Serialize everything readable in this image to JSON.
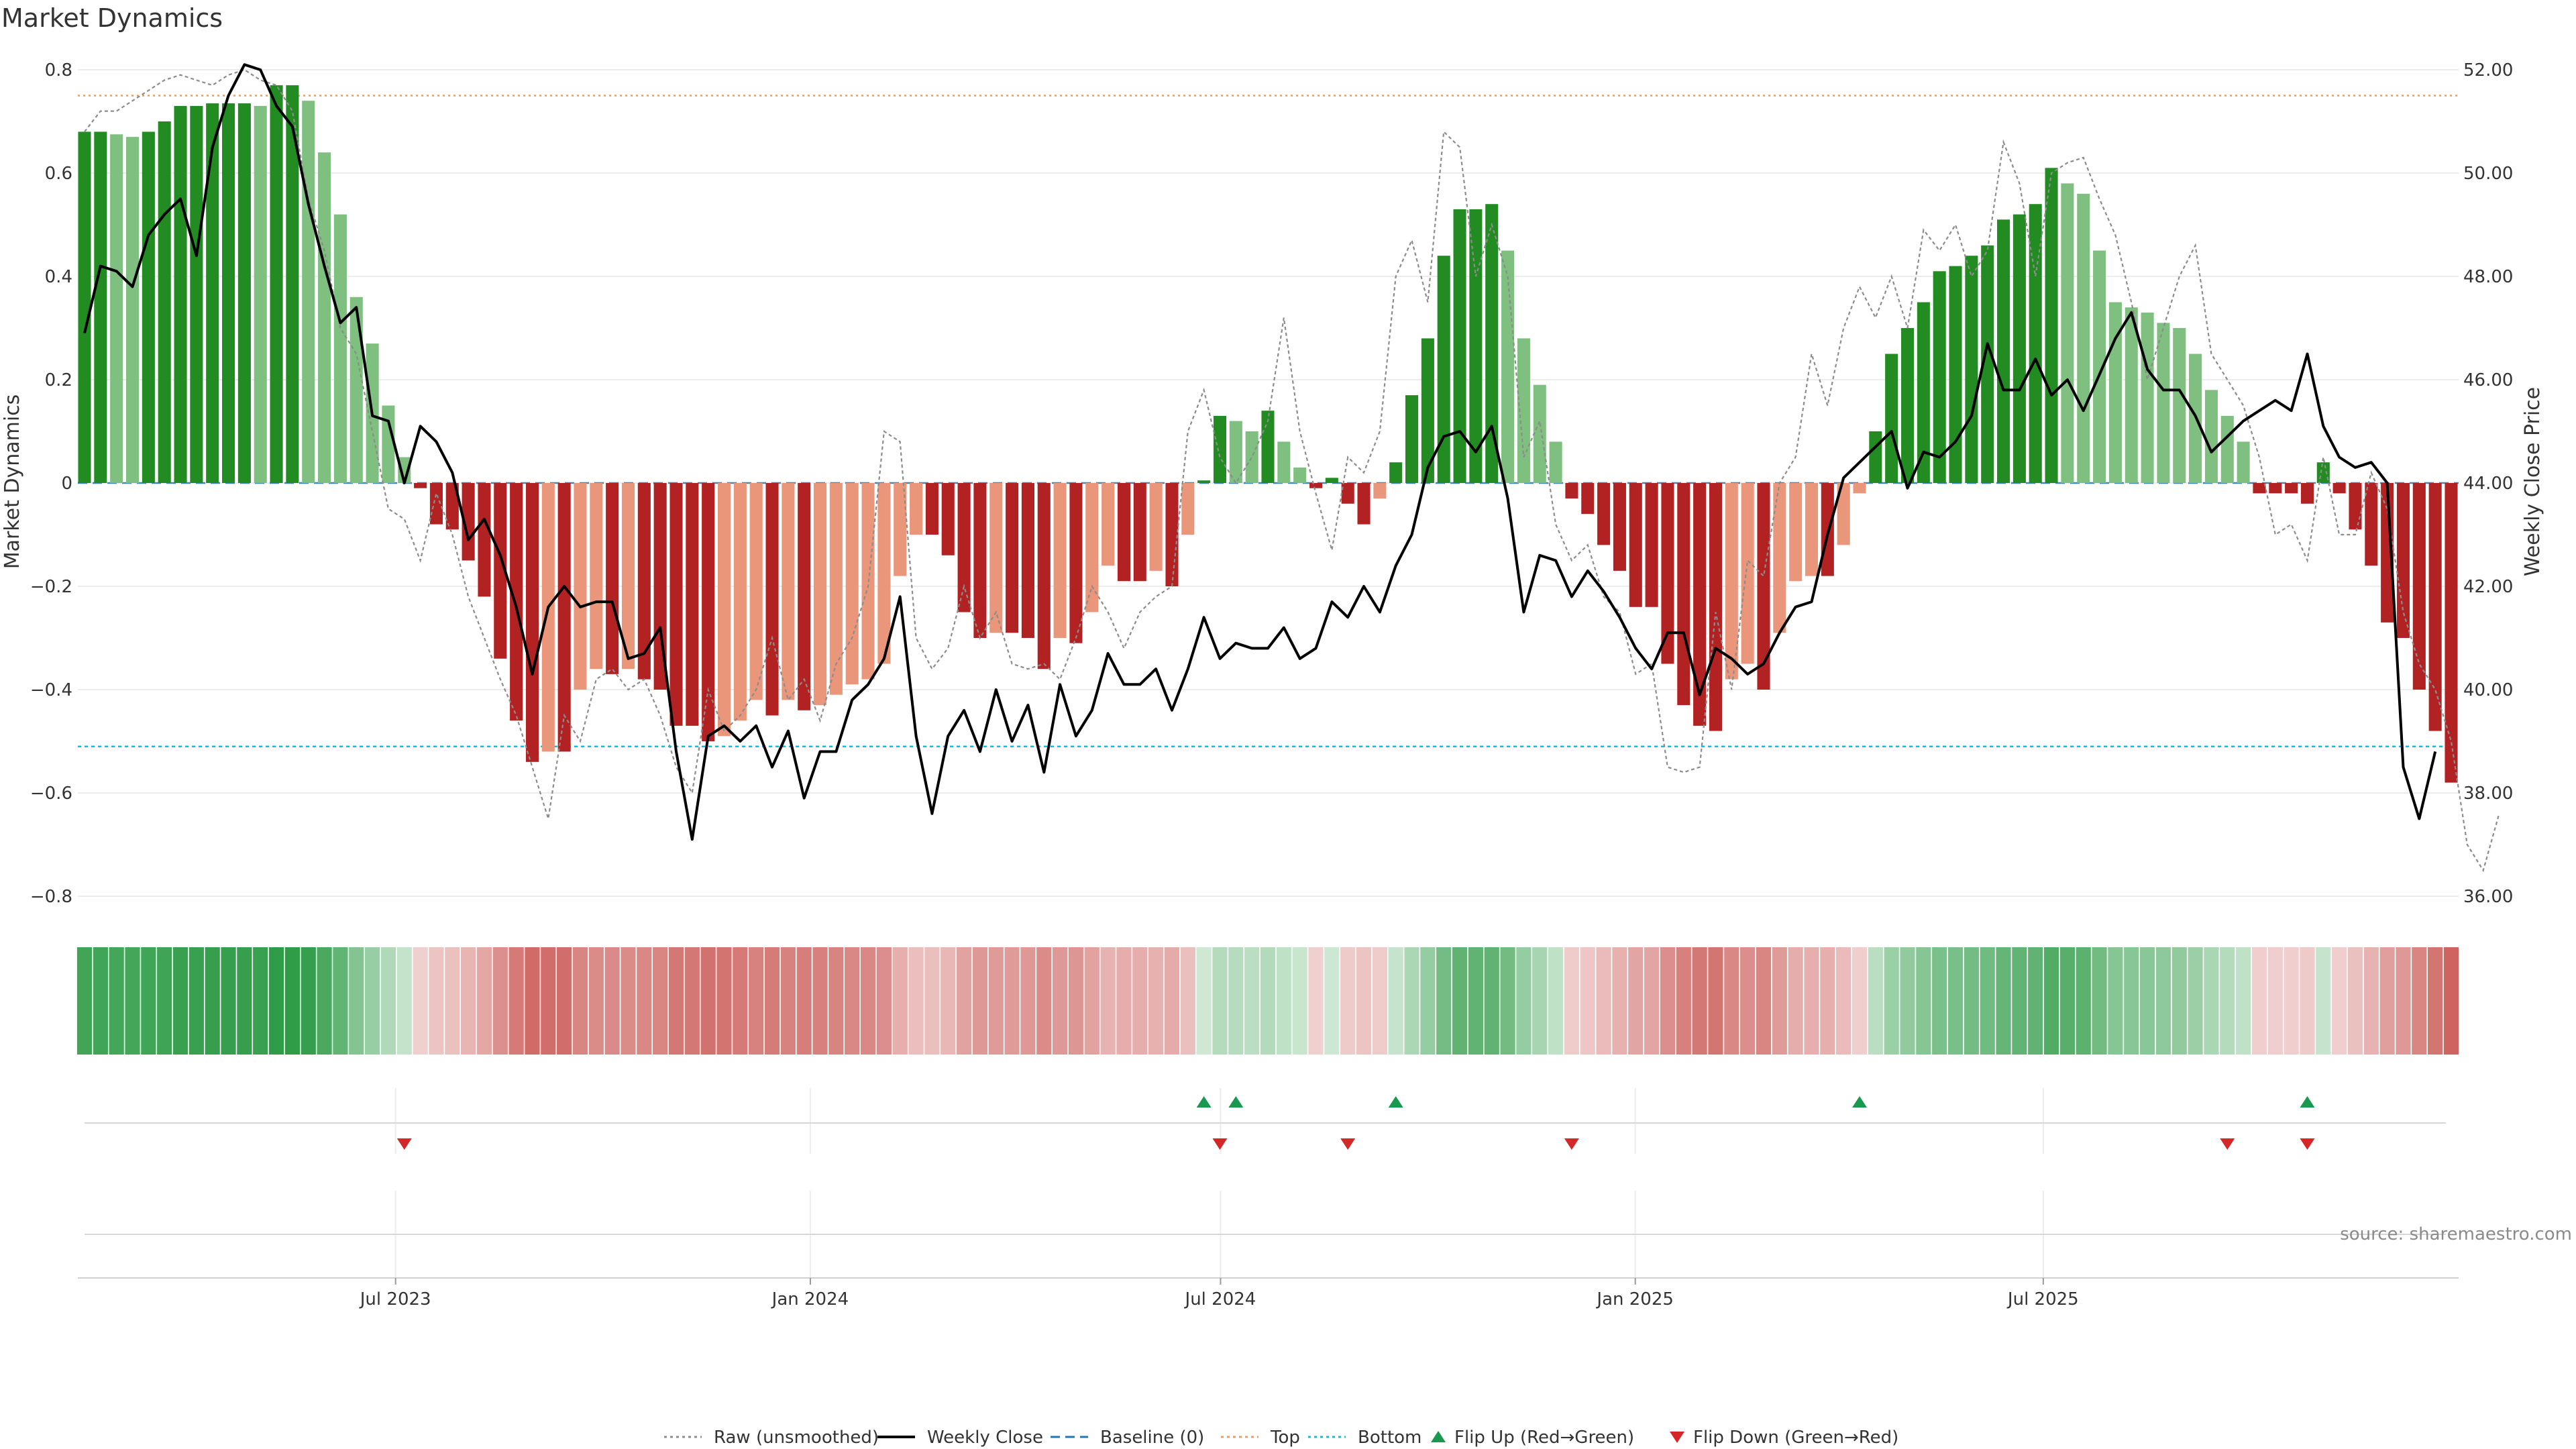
{
  "chart_data": {
    "type": "bar",
    "title": "Market Dynamics",
    "ylabel_left": "Market Dynamics",
    "ylabel_right": "Weekly Close Price",
    "source": "source: sharemaestro.com",
    "left_ylim": [
      -0.8,
      0.8
    ],
    "left_ticks": [
      0.8,
      0.6,
      0.4,
      0.2,
      0,
      -0.2,
      -0.4,
      -0.6,
      -0.8
    ],
    "left_tick_labels": [
      "0.8",
      "0.6",
      "0.4",
      "0.2",
      "0",
      "−0.2",
      "−0.4",
      "−0.6",
      "−0.8"
    ],
    "right_ylim": [
      36.0,
      52.0
    ],
    "right_ticks": [
      52,
      50,
      48,
      46,
      44,
      42,
      40,
      38,
      36
    ],
    "right_tick_labels": [
      "52.00",
      "50.00",
      "48.00",
      "46.00",
      "44.00",
      "42.00",
      "40.00",
      "38.00",
      "36.00"
    ],
    "x_date_range": [
      "2023-02-13",
      "2025-12-29"
    ],
    "x_ticks": [
      "2023-07-01",
      "2024-01-01",
      "2024-07-01",
      "2025-01-01",
      "2025-07-01"
    ],
    "x_tick_labels": [
      "Jul 2023",
      "Jan 2024",
      "Jul 2024",
      "Jan 2025",
      "Jul 2025"
    ],
    "top_level": 0.75,
    "bottom_level": -0.51,
    "baseline": 0,
    "grid": true,
    "legend_position": "bottom-center",
    "legend": [
      {
        "label": "Raw (unsmoothed)",
        "kind": "dotted-line",
        "color": "#8c8c8c"
      },
      {
        "label": "Weekly Close",
        "kind": "line",
        "color": "#000000"
      },
      {
        "label": "Baseline (0)",
        "kind": "dashed-line",
        "color": "#1f77b4"
      },
      {
        "label": "Top",
        "kind": "dotted-line",
        "color": "#e3a368"
      },
      {
        "label": "Bottom",
        "kind": "dotted-line",
        "color": "#17becf"
      },
      {
        "label": "Flip Up (Red→Green)",
        "kind": "triangle-up",
        "color": "#1a9850"
      },
      {
        "label": "Flip Down (Green→Red)",
        "kind": "triangle-down",
        "color": "#d62728"
      }
    ],
    "colors": {
      "green_strong": "#228B22",
      "green_light": "#7fbf7f",
      "red_strong": "#b22222",
      "red_light": "#e9967a",
      "price": "#000000",
      "raw": "#8c8c8c",
      "flip_up": "#1a9850",
      "flip_down": "#d62728"
    },
    "series": [
      {
        "name": "Market Dynamics",
        "values": [
          0.68,
          0.68,
          0.675,
          0.67,
          0.68,
          0.7,
          0.73,
          0.73,
          0.735,
          0.735,
          0.735,
          0.73,
          0.77,
          0.77,
          0.74,
          0.64,
          0.52,
          0.36,
          0.27,
          0.15,
          0.05,
          -0.01,
          -0.08,
          -0.09,
          -0.15,
          -0.22,
          -0.34,
          -0.46,
          -0.54,
          -0.52,
          -0.52,
          -0.4,
          -0.36,
          -0.37,
          -0.36,
          -0.38,
          -0.4,
          -0.47,
          -0.47,
          -0.5,
          -0.49,
          -0.46,
          -0.42,
          -0.45,
          -0.42,
          -0.44,
          -0.43,
          -0.41,
          -0.39,
          -0.38,
          -0.35,
          -0.18,
          -0.1,
          -0.1,
          -0.14,
          -0.25,
          -0.3,
          -0.29,
          -0.29,
          -0.3,
          -0.36,
          -0.3,
          -0.31,
          -0.25,
          -0.16,
          -0.19,
          -0.19,
          -0.17,
          -0.2,
          -0.1,
          0.005,
          0.13,
          0.12,
          0.1,
          0.14,
          0.08,
          0.03,
          -0.01,
          0.01,
          -0.04,
          -0.08,
          -0.03,
          0.04,
          0.17,
          0.28,
          0.44,
          0.53,
          0.53,
          0.54,
          0.45,
          0.28,
          0.19,
          0.08,
          -0.03,
          -0.06,
          -0.12,
          -0.17,
          -0.24,
          -0.24,
          -0.35,
          -0.43,
          -0.47,
          -0.48,
          -0.38,
          -0.35,
          -0.4,
          -0.29,
          -0.19,
          -0.18,
          -0.18,
          -0.12,
          -0.02,
          0.1,
          0.25,
          0.3,
          0.35,
          0.41,
          0.42,
          0.44,
          0.46,
          0.51,
          0.52,
          0.54,
          0.61,
          0.58,
          0.56,
          0.45,
          0.35,
          0.34,
          0.33,
          0.31,
          0.3,
          0.25,
          0.18,
          0.13,
          0.08,
          -0.02,
          -0.02,
          -0.02,
          -0.04,
          0.04,
          -0.02,
          -0.09,
          -0.16,
          -0.27,
          -0.3,
          -0.4,
          -0.48,
          -0.58
        ]
      },
      {
        "name": "Weekly Close",
        "values": [
          46.9,
          48.2,
          48.1,
          47.8,
          48.8,
          49.2,
          49.5,
          48.4,
          50.5,
          51.5,
          52.1,
          52.0,
          51.3,
          50.9,
          49.4,
          48.2,
          47.1,
          47.4,
          45.3,
          45.2,
          44.0,
          45.1,
          44.8,
          44.2,
          42.9,
          43.3,
          42.6,
          41.6,
          40.3,
          41.6,
          42.0,
          41.6,
          41.7,
          41.7,
          40.6,
          40.7,
          41.2,
          38.8,
          37.1,
          39.1,
          39.3,
          39.0,
          39.3,
          38.5,
          39.2,
          37.9,
          38.8,
          38.8,
          39.8,
          40.1,
          40.6,
          41.8,
          39.1,
          37.6,
          39.1,
          39.6,
          38.8,
          40.0,
          39.0,
          39.7,
          38.4,
          40.1,
          39.1,
          39.6,
          40.7,
          40.1,
          40.1,
          40.4,
          39.6,
          40.4,
          41.4,
          40.6,
          40.9,
          40.8,
          40.8,
          41.2,
          40.6,
          40.8,
          41.7,
          41.4,
          42.0,
          41.5,
          42.4,
          43.0,
          44.3,
          44.9,
          45.0,
          44.6,
          45.1,
          43.7,
          41.5,
          42.6,
          42.5,
          41.8,
          42.3,
          41.9,
          41.4,
          40.8,
          40.4,
          41.1,
          41.1,
          39.9,
          40.8,
          40.6,
          40.3,
          40.5,
          41.1,
          41.6,
          41.7,
          43.0,
          44.1,
          44.4,
          44.7,
          45.0,
          43.9,
          44.6,
          44.5,
          44.8,
          45.3,
          46.7,
          45.8,
          45.8,
          46.4,
          45.7,
          46.0,
          45.4,
          46.1,
          46.8,
          47.3,
          46.2,
          45.8,
          45.8,
          45.3,
          44.6,
          44.9,
          45.2,
          45.4,
          45.6,
          45.4,
          46.5,
          45.1,
          44.5,
          44.3,
          44.4,
          44.0,
          38.5,
          37.5,
          38.8
        ]
      },
      {
        "name": "Raw (unsmoothed)",
        "values": [
          0.68,
          0.72,
          0.72,
          0.74,
          0.76,
          0.78,
          0.79,
          0.78,
          0.77,
          0.79,
          0.8,
          0.78,
          0.77,
          0.72,
          0.55,
          0.45,
          0.3,
          0.25,
          0.1,
          -0.05,
          -0.07,
          -0.15,
          -0.02,
          -0.1,
          -0.22,
          -0.3,
          -0.38,
          -0.45,
          -0.55,
          -0.65,
          -0.45,
          -0.5,
          -0.38,
          -0.36,
          -0.4,
          -0.38,
          -0.45,
          -0.55,
          -0.6,
          -0.4,
          -0.48,
          -0.45,
          -0.4,
          -0.3,
          -0.42,
          -0.38,
          -0.46,
          -0.35,
          -0.3,
          -0.2,
          0.1,
          0.08,
          -0.3,
          -0.36,
          -0.32,
          -0.2,
          -0.3,
          -0.25,
          -0.35,
          -0.36,
          -0.35,
          -0.38,
          -0.3,
          -0.2,
          -0.25,
          -0.32,
          -0.25,
          -0.22,
          -0.2,
          0.1,
          0.18,
          0.05,
          0.0,
          0.05,
          0.12,
          0.32,
          0.1,
          -0.02,
          -0.13,
          0.05,
          0.02,
          0.1,
          0.4,
          0.47,
          0.35,
          0.68,
          0.65,
          0.4,
          0.5,
          0.4,
          0.05,
          0.12,
          -0.08,
          -0.15,
          -0.12,
          -0.22,
          -0.25,
          -0.37,
          -0.35,
          -0.55,
          -0.56,
          -0.55,
          -0.25,
          -0.4,
          -0.15,
          -0.18,
          0.0,
          0.05,
          0.25,
          0.15,
          0.3,
          0.38,
          0.32,
          0.4,
          0.3,
          0.49,
          0.45,
          0.5,
          0.4,
          0.45,
          0.66,
          0.58,
          0.4,
          0.6,
          0.62,
          0.63,
          0.55,
          0.48,
          0.35,
          0.2,
          0.3,
          0.4,
          0.46,
          0.25,
          0.2,
          0.15,
          0.05,
          -0.1,
          -0.08,
          -0.15,
          0.05,
          -0.1,
          -0.1,
          0.02,
          -0.05,
          -0.25,
          -0.35,
          -0.4,
          -0.5,
          -0.7,
          -0.75,
          -0.64
        ]
      }
    ],
    "weekly_state_strip": [
      0.68,
      0.68,
      0.675,
      0.67,
      0.68,
      0.7,
      0.73,
      0.73,
      0.735,
      0.735,
      0.735,
      0.73,
      0.77,
      0.77,
      0.74,
      0.64,
      0.52,
      0.36,
      0.27,
      0.15,
      0.05,
      -0.01,
      -0.08,
      -0.09,
      -0.15,
      -0.22,
      -0.34,
      -0.46,
      -0.54,
      -0.52,
      -0.52,
      -0.4,
      -0.36,
      -0.37,
      -0.36,
      -0.38,
      -0.4,
      -0.47,
      -0.47,
      -0.5,
      -0.49,
      -0.46,
      -0.42,
      -0.45,
      -0.42,
      -0.44,
      -0.43,
      -0.41,
      -0.39,
      -0.38,
      -0.35,
      -0.18,
      -0.1,
      -0.1,
      -0.14,
      -0.25,
      -0.3,
      -0.29,
      -0.29,
      -0.3,
      -0.36,
      -0.3,
      -0.31,
      -0.25,
      -0.16,
      -0.19,
      -0.19,
      -0.17,
      -0.2,
      -0.1,
      0.005,
      0.13,
      0.12,
      0.1,
      0.14,
      0.08,
      0.03,
      -0.01,
      0.01,
      -0.04,
      -0.08,
      -0.03,
      0.04,
      0.17,
      0.28,
      0.44,
      0.53,
      0.53,
      0.54,
      0.45,
      0.28,
      0.19,
      0.08,
      -0.03,
      -0.06,
      -0.12,
      -0.17,
      -0.24,
      -0.24,
      -0.35,
      -0.43,
      -0.47,
      -0.48,
      -0.38,
      -0.35,
      -0.4,
      -0.29,
      -0.19,
      -0.18,
      -0.18,
      -0.12,
      -0.02,
      0.1,
      0.25,
      0.3,
      0.35,
      0.41,
      0.42,
      0.44,
      0.46,
      0.51,
      0.52,
      0.54,
      0.61,
      0.58,
      0.56,
      0.45,
      0.35,
      0.34,
      0.33,
      0.31,
      0.3,
      0.25,
      0.18,
      0.13,
      0.08,
      -0.02,
      -0.02,
      -0.02,
      -0.04,
      0.04,
      -0.02,
      -0.09,
      -0.16,
      -0.27,
      -0.3,
      -0.4,
      -0.48,
      -0.58
    ],
    "flip_up_weeks": [
      70,
      72,
      82,
      111,
      139
    ],
    "flip_down_weeks": [
      20,
      71,
      79,
      93,
      134,
      139
    ]
  }
}
